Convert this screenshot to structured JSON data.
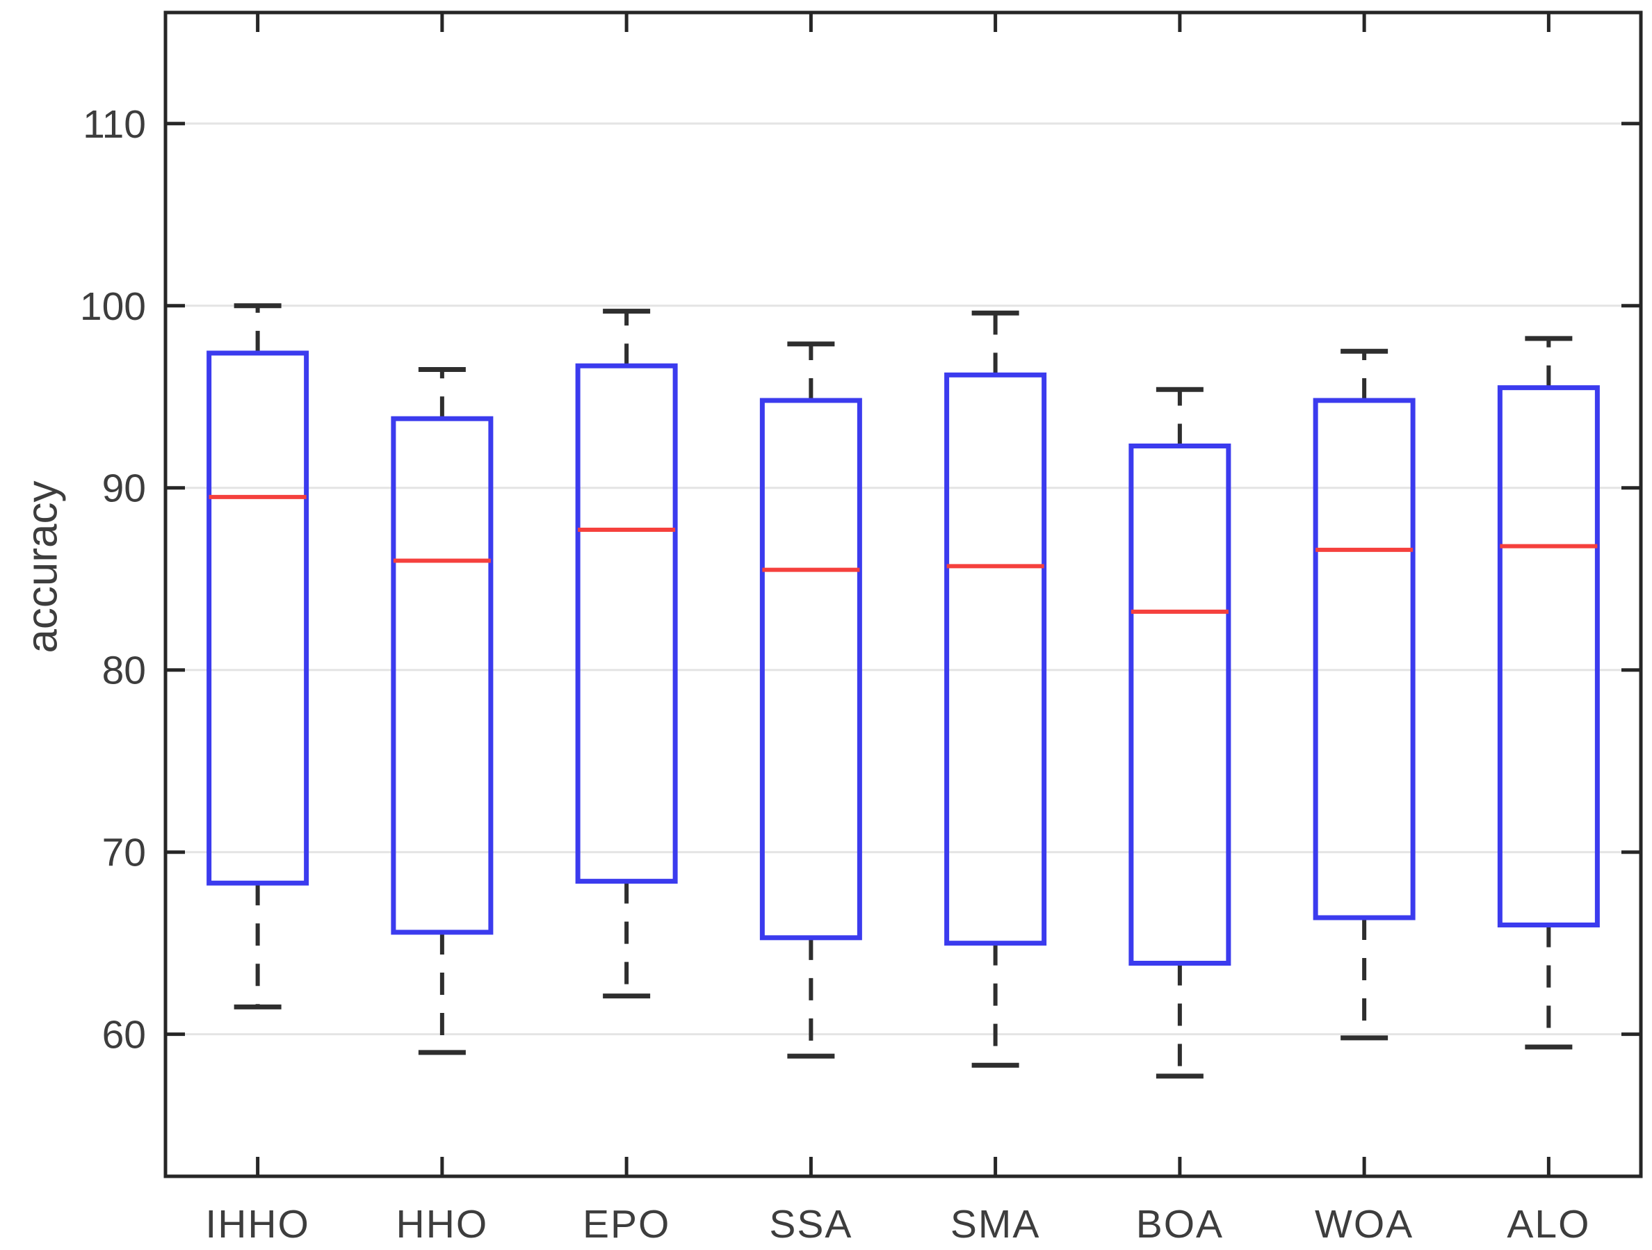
{
  "chart_data": {
    "type": "box",
    "title": "",
    "xlabel": "",
    "ylabel": "accuracy",
    "categories": [
      "IHHO",
      "HHO",
      "EPO",
      "SSA",
      "SMA",
      "BOA",
      "WOA",
      "ALO"
    ],
    "series": [
      {
        "name": "IHHO",
        "whisker_low": 61.5,
        "q1": 68.3,
        "median": 89.5,
        "q3": 97.4,
        "whisker_high": 100.0
      },
      {
        "name": "HHO",
        "whisker_low": 59.0,
        "q1": 65.6,
        "median": 86.0,
        "q3": 93.8,
        "whisker_high": 96.5
      },
      {
        "name": "EPO",
        "whisker_low": 62.1,
        "q1": 68.4,
        "median": 87.7,
        "q3": 96.7,
        "whisker_high": 99.7
      },
      {
        "name": "SSA",
        "whisker_low": 58.8,
        "q1": 65.3,
        "median": 85.5,
        "q3": 94.8,
        "whisker_high": 97.9
      },
      {
        "name": "SMA",
        "whisker_low": 58.3,
        "q1": 65.0,
        "median": 85.7,
        "q3": 96.2,
        "whisker_high": 99.6
      },
      {
        "name": "BOA",
        "whisker_low": 57.7,
        "q1": 63.9,
        "median": 83.2,
        "q3": 92.3,
        "whisker_high": 95.4
      },
      {
        "name": "WOA",
        "whisker_low": 59.8,
        "q1": 66.4,
        "median": 86.6,
        "q3": 94.8,
        "whisker_high": 97.5
      },
      {
        "name": "ALO",
        "whisker_low": 59.3,
        "q1": 66.0,
        "median": 86.8,
        "q3": 95.5,
        "whisker_high": 98.2
      }
    ],
    "yticks": [
      60,
      70,
      80,
      90,
      100,
      110
    ],
    "ylim": [
      52.2,
      116.1
    ],
    "grid": "horizontal",
    "legend": "none",
    "colors": {
      "box_edge": "#3b3bee",
      "median": "#f5403d",
      "whisker": "#2e2e2e",
      "grid": "#e4e4e4",
      "axis": "#262626",
      "text": "#3d3d3d"
    }
  }
}
